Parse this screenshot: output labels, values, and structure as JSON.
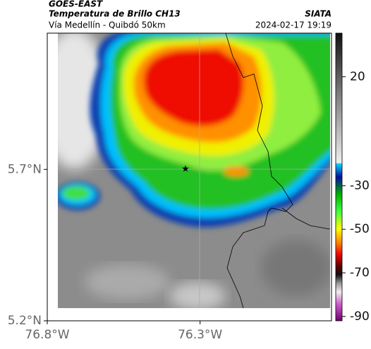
{
  "header": {
    "title": "GOES-EAST",
    "subtitle": "Temperatura de Brillo CH13",
    "caption": "Vía Medellín - Quibdó 50km",
    "source": "SIATA",
    "timestamp": "2024-02-17 19:19"
  },
  "map": {
    "xlim": [
      -76.8,
      -75.87
    ],
    "ylim": [
      5.2,
      6.15
    ],
    "lat_ticks": [
      {
        "value": 5.7,
        "label": "5.7°N"
      },
      {
        "value": 5.2,
        "label": "5.2°N"
      }
    ],
    "lon_ticks": [
      {
        "value": -76.8,
        "label": "76.8°W"
      },
      {
        "value": -76.3,
        "label": "76.3°W"
      }
    ]
  },
  "colorbar": {
    "lim": [
      -92,
      40
    ],
    "ticks": [
      20,
      -30,
      -50,
      -70,
      -90
    ]
  }
}
